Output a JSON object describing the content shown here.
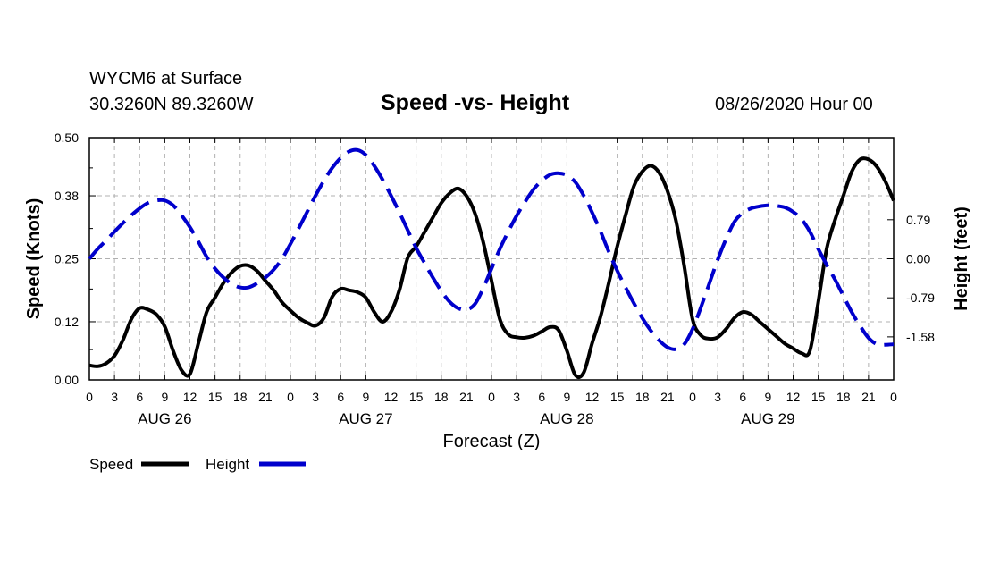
{
  "header": {
    "station": "WYCM6 at Surface",
    "coords": "30.3260N 89.3260W",
    "title": "Speed -vs- Height",
    "datetime": "08/26/2020 Hour 00"
  },
  "legend": {
    "speed_label": "Speed",
    "height_label": "Height"
  },
  "colors": {
    "speed": "#000000",
    "height": "#0000cc",
    "grid": "#b0b0b0"
  },
  "chart_data": {
    "type": "line",
    "title": "Speed -vs- Height",
    "xlabel": "Forecast (Z)",
    "ylabel": "Speed (Knots)",
    "y2label": "Height (feet)",
    "x_range_hours": [
      0,
      96
    ],
    "x_ticks": [
      "0",
      "3",
      "6",
      "9",
      "12",
      "15",
      "18",
      "21",
      "0",
      "3",
      "6",
      "9",
      "12",
      "15",
      "18",
      "21",
      "0",
      "3",
      "6",
      "9",
      "12",
      "15",
      "18",
      "21",
      "0",
      "3",
      "6",
      "9",
      "12",
      "15",
      "18",
      "21",
      "0"
    ],
    "day_labels": [
      {
        "label": "AUG 26",
        "hour": 9
      },
      {
        "label": "AUG 27",
        "hour": 33
      },
      {
        "label": "AUG 28",
        "hour": 57
      },
      {
        "label": "AUG 29",
        "hour": 81
      }
    ],
    "ylim": [
      0.0,
      0.5
    ],
    "yticks": [
      "0.00",
      "0.12",
      "0.25",
      "0.38",
      "0.50"
    ],
    "y2lim": [
      -2.45,
      2.45
    ],
    "y2ticks": [
      "-1.58",
      "-0.79",
      "0.00",
      "0.79"
    ],
    "series": [
      {
        "name": "Speed",
        "axis": "left",
        "style": "solid",
        "x": [
          0,
          1,
          2,
          3,
          4,
          5,
          6,
          7,
          8,
          9,
          10,
          11,
          12,
          13,
          14,
          15,
          16,
          17,
          18,
          19,
          20,
          21,
          22,
          23,
          24,
          25,
          26,
          27,
          28,
          29,
          30,
          31,
          32,
          33,
          34,
          35,
          36,
          37,
          38,
          39,
          40,
          41,
          42,
          43,
          44,
          45,
          46,
          47,
          48,
          49,
          50,
          51,
          52,
          53,
          54,
          55,
          56,
          57,
          58,
          59,
          60,
          61,
          62,
          63,
          64,
          65,
          66,
          67,
          68,
          69,
          70,
          71,
          72,
          73,
          74,
          75,
          76,
          77,
          78,
          79,
          80,
          81,
          82,
          83,
          84,
          85,
          86,
          87,
          88,
          89,
          90,
          91,
          92,
          93,
          94,
          95,
          96
        ],
        "values": [
          0.03,
          0.028,
          0.034,
          0.05,
          0.082,
          0.125,
          0.148,
          0.145,
          0.135,
          0.11,
          0.06,
          0.02,
          0.012,
          0.075,
          0.14,
          0.17,
          0.2,
          0.222,
          0.235,
          0.236,
          0.225,
          0.205,
          0.185,
          0.16,
          0.143,
          0.128,
          0.118,
          0.112,
          0.128,
          0.172,
          0.188,
          0.185,
          0.181,
          0.17,
          0.14,
          0.12,
          0.14,
          0.185,
          0.252,
          0.275,
          0.305,
          0.335,
          0.365,
          0.385,
          0.395,
          0.38,
          0.345,
          0.285,
          0.205,
          0.125,
          0.094,
          0.088,
          0.087,
          0.091,
          0.1,
          0.109,
          0.103,
          0.06,
          0.01,
          0.015,
          0.075,
          0.13,
          0.2,
          0.275,
          0.34,
          0.4,
          0.43,
          0.442,
          0.428,
          0.39,
          0.33,
          0.235,
          0.125,
          0.092,
          0.085,
          0.088,
          0.105,
          0.128,
          0.14,
          0.135,
          0.12,
          0.105,
          0.09,
          0.075,
          0.065,
          0.055,
          0.06,
          0.16,
          0.27,
          0.33,
          0.38,
          0.43,
          0.455,
          0.455,
          0.44,
          0.41,
          0.37
        ]
      },
      {
        "name": "Height",
        "axis": "right",
        "style": "dashed",
        "x": [
          0,
          1,
          2,
          3,
          4,
          5,
          6,
          7,
          8,
          9,
          10,
          11,
          12,
          13,
          14,
          15,
          16,
          17,
          18,
          19,
          20,
          21,
          22,
          23,
          24,
          25,
          26,
          27,
          28,
          29,
          30,
          31,
          32,
          33,
          34,
          35,
          36,
          37,
          38,
          39,
          40,
          41,
          42,
          43,
          44,
          45,
          46,
          47,
          48,
          49,
          50,
          51,
          52,
          53,
          54,
          55,
          56,
          57,
          58,
          59,
          60,
          61,
          62,
          63,
          64,
          65,
          66,
          67,
          68,
          69,
          70,
          71,
          72,
          73,
          74,
          75,
          76,
          77,
          78,
          79,
          80,
          81,
          82,
          83,
          84,
          85,
          86,
          87,
          88,
          89,
          90,
          91,
          92,
          93,
          94,
          95,
          96
        ],
        "values": [
          0.0,
          0.2,
          0.37,
          0.55,
          0.72,
          0.88,
          1.02,
          1.13,
          1.18,
          1.18,
          1.08,
          0.88,
          0.64,
          0.35,
          0.04,
          -0.2,
          -0.38,
          -0.51,
          -0.58,
          -0.58,
          -0.5,
          -0.38,
          -0.22,
          0.0,
          0.3,
          0.62,
          0.95,
          1.28,
          1.58,
          1.84,
          2.04,
          2.17,
          2.2,
          2.1,
          1.88,
          1.6,
          1.28,
          0.94,
          0.58,
          0.22,
          -0.08,
          -0.38,
          -0.65,
          -0.87,
          -1.0,
          -1.03,
          -0.92,
          -0.6,
          -0.2,
          0.2,
          0.55,
          0.87,
          1.15,
          1.4,
          1.58,
          1.7,
          1.73,
          1.69,
          1.55,
          1.28,
          0.94,
          0.56,
          0.14,
          -0.24,
          -0.58,
          -0.9,
          -1.2,
          -1.45,
          -1.65,
          -1.79,
          -1.83,
          -1.73,
          -1.42,
          -0.98,
          -0.5,
          -0.02,
          0.4,
          0.75,
          0.93,
          1.02,
          1.06,
          1.08,
          1.07,
          1.04,
          0.95,
          0.8,
          0.55,
          0.2,
          -0.12,
          -0.42,
          -0.75,
          -1.08,
          -1.36,
          -1.6,
          -1.73,
          -1.74,
          -1.73
        ]
      }
    ]
  }
}
